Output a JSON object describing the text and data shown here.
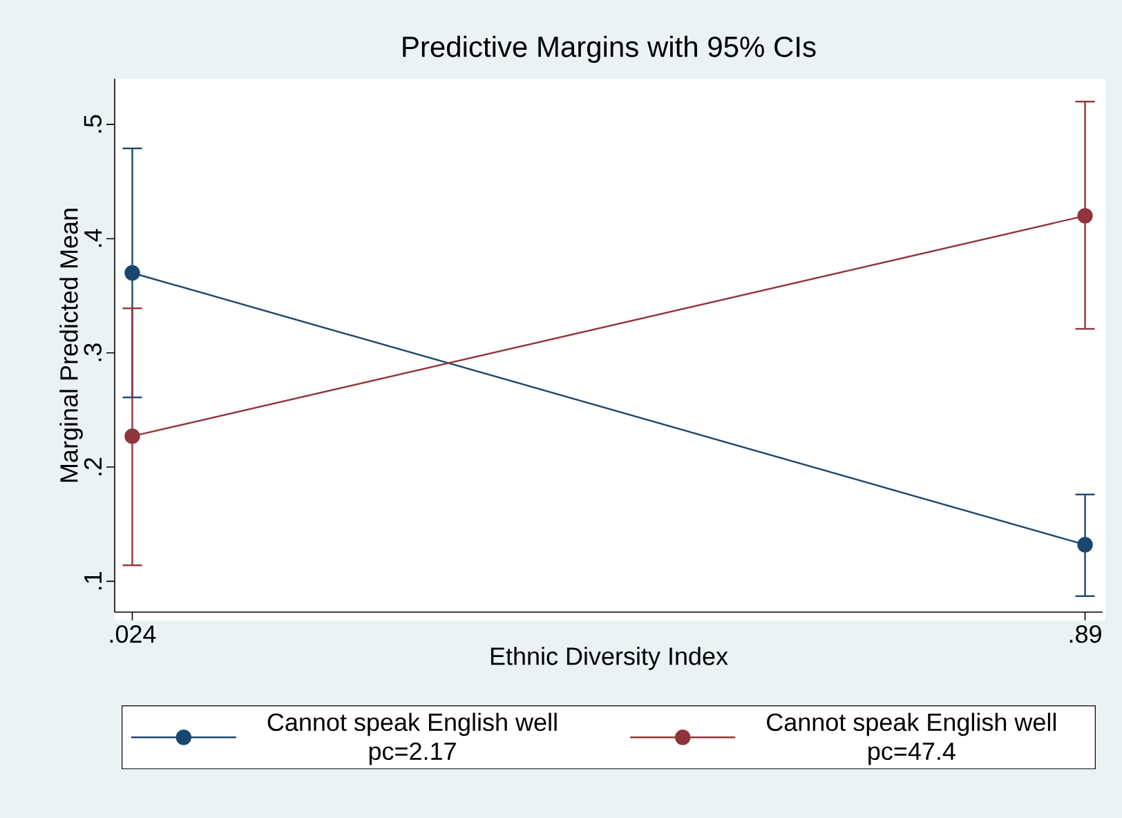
{
  "chart_data": {
    "type": "line",
    "title": "Predictive Margins with 95% CIs",
    "xlabel": "Ethnic Diversity Index",
    "ylabel": "Marginal Predicted Mean",
    "x": [
      0.024,
      0.89
    ],
    "series": [
      {
        "name": "Cannot speak English well pc=2.17",
        "color": "#1a476f",
        "values": [
          0.37,
          0.132
        ],
        "errors": [
          [
            0.261,
            0.479
          ],
          [
            0.087,
            0.176
          ]
        ]
      },
      {
        "name": "Cannot speak English well pc=47.4",
        "color": "#90353b",
        "values": [
          0.227,
          0.42
        ],
        "errors": [
          [
            0.114,
            0.339
          ],
          [
            0.321,
            0.52
          ]
        ]
      }
    ],
    "xlim": [
      0.008,
      0.906
    ],
    "ylim": [
      0.073,
      0.54
    ],
    "xticks": [
      {
        "value": 0.024,
        "label": ".024"
      },
      {
        "value": 0.89,
        "label": ".89"
      }
    ],
    "yticks": [
      {
        "value": 0.1,
        "label": ".1"
      },
      {
        "value": 0.2,
        "label": ".2"
      },
      {
        "value": 0.3,
        "label": ".3"
      },
      {
        "value": 0.4,
        "label": ".4"
      },
      {
        "value": 0.5,
        "label": ".5"
      }
    ],
    "legend": "bottom",
    "marker": "circle",
    "line_style": "solid",
    "grid": false
  }
}
